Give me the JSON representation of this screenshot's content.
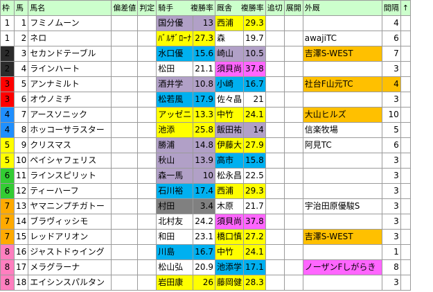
{
  "headers": {
    "waku": "枠",
    "uma": "馬",
    "name": "馬名",
    "hensa": "偏差値",
    "hantei": "判定",
    "kishu": "騎手",
    "kishu_rate": "複勝率",
    "kyusha": "厩舎",
    "kyusha_rate": "複勝率",
    "tsuikiri": "追切",
    "tenkai": "展開",
    "gaikyu": "外厩",
    "kankaku": "間隔",
    "sort": "↑"
  },
  "colors": {
    "header_bg": "#ccffcc",
    "waku": {
      "1": "#ffffff",
      "2": "#2b2b2b",
      "3": "#ff0000",
      "4": "#1f8fff",
      "5": "#ffff00",
      "6": "#33cc33",
      "7": "#ffaa00",
      "8": "#ff7fbf"
    },
    "purple": "#b1a0c7",
    "yellow": "#ffff00",
    "cyan": "#00b0f0",
    "green": "#33cc33",
    "orange": "#ffc000",
    "pink": "#ff66ff",
    "gray": "#808080"
  },
  "rows": [
    {
      "waku": "1",
      "uma": "1",
      "name": "フミノムーン",
      "kishu": "国分優",
      "kishu_rate": "13",
      "kishu_bg": "purple",
      "kyusha": "西浦",
      "kyusha_rate": "29.3",
      "kyusha_bg": "yellow",
      "gaikyu": "",
      "gaikyu_bg": "",
      "kankaku": "4",
      "kankaku_bg": ""
    },
    {
      "waku": "1",
      "uma": "2",
      "name": "ネロ",
      "kishu": "ﾊﾞﾙｻﾞﾛｰﾅ",
      "kishu_rate": "27.3",
      "kishu_bg": "yellow",
      "kyusha": "森",
      "kyusha_rate": "19.7",
      "kyusha_bg": "",
      "gaikyu": "awajiTC",
      "gaikyu_bg": "",
      "kankaku": "6",
      "kankaku_bg": ""
    },
    {
      "waku": "2",
      "uma": "3",
      "name": "セカンドテーブル",
      "kishu": "水口優",
      "kishu_rate": "15.6",
      "kishu_bg": "cyan",
      "kyusha": "崎山",
      "kyusha_rate": "10.5",
      "kyusha_bg": "purple",
      "gaikyu": "吉澤S-WEST",
      "gaikyu_bg": "orange",
      "kankaku": "7",
      "kankaku_bg": ""
    },
    {
      "waku": "2",
      "uma": "4",
      "name": "ラインハート",
      "kishu": "松田",
      "kishu_rate": "21.1",
      "kishu_bg": "",
      "kyusha": "須貝尚",
      "kyusha_rate": "37.8",
      "kyusha_bg": "pink",
      "gaikyu": "",
      "gaikyu_bg": "",
      "kankaku": "3",
      "kankaku_bg": ""
    },
    {
      "waku": "3",
      "uma": "5",
      "name": "アンナミルト",
      "kishu": "酒井学",
      "kishu_rate": "10.8",
      "kishu_bg": "purple",
      "kyusha": "小崎",
      "kyusha_rate": "16.7",
      "kyusha_bg": "cyan",
      "gaikyu": "社台F山元TC",
      "gaikyu_bg": "orange",
      "kankaku": "4",
      "kankaku_bg": "orange"
    },
    {
      "waku": "3",
      "uma": "6",
      "name": "オウノミチ",
      "kishu": "松若風",
      "kishu_rate": "17.9",
      "kishu_bg": "cyan",
      "kyusha": "佐々晶",
      "kyusha_rate": "21",
      "kyusha_bg": "",
      "gaikyu": "",
      "gaikyu_bg": "",
      "kankaku": "3",
      "kankaku_bg": ""
    },
    {
      "waku": "4",
      "uma": "7",
      "name": "アースソニック",
      "kishu": "アッゼニ",
      "kishu_rate": "13.3",
      "kishu_bg": "yellow",
      "kyusha": "中竹",
      "kyusha_rate": "24.1",
      "kyusha_bg": "yellow",
      "gaikyu": "大山ヒルズ",
      "gaikyu_bg": "orange",
      "kankaku": "10",
      "kankaku_bg": ""
    },
    {
      "waku": "4",
      "uma": "8",
      "name": "ホッコーサラスター",
      "kishu": "池添",
      "kishu_rate": "25.8",
      "kishu_bg": "yellow",
      "kyusha": "飯田祐",
      "kyusha_rate": "14",
      "kyusha_bg": "purple",
      "gaikyu": "信楽牧場",
      "gaikyu_bg": "",
      "kankaku": "5",
      "kankaku_bg": ""
    },
    {
      "waku": "5",
      "uma": "9",
      "name": "クリスマス",
      "kishu": "勝浦",
      "kishu_rate": "14.8",
      "kishu_bg": "purple",
      "kyusha": "伊藤大",
      "kyusha_rate": "27.9",
      "kyusha_bg": "yellow",
      "gaikyu": "阿見TC",
      "gaikyu_bg": "",
      "kankaku": "6",
      "kankaku_bg": ""
    },
    {
      "waku": "5",
      "uma": "10",
      "name": "ペイシャフェリス",
      "kishu": "秋山",
      "kishu_rate": "13.9",
      "kishu_bg": "purple",
      "kyusha": "高市",
      "kyusha_rate": "15.8",
      "kyusha_bg": "cyan",
      "gaikyu": "",
      "gaikyu_bg": "",
      "kankaku": "3",
      "kankaku_bg": ""
    },
    {
      "waku": "6",
      "uma": "11",
      "name": "ラインスピリット",
      "kishu": "森一馬",
      "kishu_rate": "10",
      "kishu_bg": "purple",
      "kyusha": "松永昌",
      "kyusha_rate": "22.5",
      "kyusha_bg": "",
      "gaikyu": "",
      "gaikyu_bg": "",
      "kankaku": "3",
      "kankaku_bg": ""
    },
    {
      "waku": "6",
      "uma": "12",
      "name": "ティーハーフ",
      "kishu": "石川裕",
      "kishu_rate": "17.4",
      "kishu_bg": "cyan",
      "kyusha": "西浦",
      "kyusha_rate": "29.3",
      "kyusha_bg": "yellow",
      "gaikyu": "",
      "gaikyu_bg": "",
      "kankaku": "3",
      "kankaku_bg": ""
    },
    {
      "waku": "7",
      "uma": "13",
      "name": "ヤマニンプチガトー",
      "kishu": "村田",
      "kishu_rate": "3.4",
      "kishu_bg": "gray",
      "kyusha": "木原",
      "kyusha_rate": "21.7",
      "kyusha_bg": "",
      "gaikyu": "宇治田原優駿S",
      "gaikyu_bg": "",
      "kankaku": "3",
      "kankaku_bg": ""
    },
    {
      "waku": "7",
      "uma": "14",
      "name": "ブラヴィッシモ",
      "kishu": "北村友",
      "kishu_rate": "24.2",
      "kishu_bg": "",
      "kyusha": "須貝尚",
      "kyusha_rate": "37.8",
      "kyusha_bg": "pink",
      "gaikyu": "",
      "gaikyu_bg": "",
      "kankaku": "3",
      "kankaku_bg": ""
    },
    {
      "waku": "7",
      "uma": "15",
      "name": "レッドアリオン",
      "kishu": "和田",
      "kishu_rate": "23.1",
      "kishu_bg": "",
      "kyusha": "橋口慎",
      "kyusha_rate": "27.2",
      "kyusha_bg": "yellow",
      "gaikyu": "吉澤S-WEST",
      "gaikyu_bg": "orange",
      "kankaku": "3",
      "kankaku_bg": ""
    },
    {
      "waku": "8",
      "uma": "16",
      "name": "ジャストドゥイング",
      "kishu": "川島",
      "kishu_rate": "16.7",
      "kishu_bg": "cyan",
      "kyusha": "中竹",
      "kyusha_rate": "24.1",
      "kyusha_bg": "yellow",
      "gaikyu": "",
      "gaikyu_bg": "",
      "kankaku": "1",
      "kankaku_bg": ""
    },
    {
      "waku": "8",
      "uma": "17",
      "name": "メラグラーナ",
      "kishu": "松山弘",
      "kishu_rate": "20.9",
      "kishu_bg": "",
      "kyusha": "池添学",
      "kyusha_rate": "17.1",
      "kyusha_bg": "cyan",
      "gaikyu": "ノーザンFしがらき",
      "gaikyu_bg": "pink",
      "kankaku": "8",
      "kankaku_bg": ""
    },
    {
      "waku": "8",
      "uma": "18",
      "name": "エイシンスパルタン",
      "kishu": "岩田康",
      "kishu_rate": "26",
      "kishu_bg": "yellow",
      "kyusha": "藤岡健",
      "kyusha_rate": "28.3",
      "kyusha_bg": "yellow",
      "gaikyu": "",
      "gaikyu_bg": "",
      "kankaku": "3",
      "kankaku_bg": ""
    }
  ]
}
